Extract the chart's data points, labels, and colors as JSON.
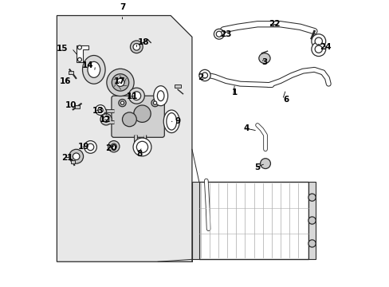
{
  "bg": "#ffffff",
  "box_fill": "#e8e8e8",
  "lc": "#2a2a2a",
  "lw_thin": 0.7,
  "lw_med": 1.2,
  "lw_thick": 2.5,
  "fs": 7.5,
  "part_labels": {
    "7": [
      0.245,
      0.965,
      "center",
      "bottom"
    ],
    "15": [
      0.055,
      0.835,
      "right",
      "center"
    ],
    "14": [
      0.145,
      0.775,
      "right",
      "center"
    ],
    "16": [
      0.025,
      0.72,
      "left",
      "center"
    ],
    "18": [
      0.3,
      0.855,
      "left",
      "center"
    ],
    "17": [
      0.215,
      0.72,
      "left",
      "center"
    ],
    "11": [
      0.26,
      0.665,
      "left",
      "center"
    ],
    "10": [
      0.045,
      0.635,
      "left",
      "center"
    ],
    "13": [
      0.14,
      0.615,
      "left",
      "center"
    ],
    "12": [
      0.165,
      0.585,
      "left",
      "center"
    ],
    "9": [
      0.43,
      0.58,
      "left",
      "center"
    ],
    "8": [
      0.295,
      0.465,
      "left",
      "center"
    ],
    "20": [
      0.185,
      0.485,
      "left",
      "center"
    ],
    "19": [
      0.09,
      0.49,
      "left",
      "center"
    ],
    "21": [
      0.03,
      0.45,
      "left",
      "center"
    ],
    "22": [
      0.76,
      0.92,
      "left",
      "center"
    ],
    "23": [
      0.59,
      0.87,
      "left",
      "bottom"
    ],
    "24": [
      0.94,
      0.84,
      "left",
      "center"
    ],
    "3": [
      0.735,
      0.785,
      "left",
      "center"
    ],
    "2": [
      0.53,
      0.72,
      "right",
      "bottom"
    ],
    "1": [
      0.63,
      0.665,
      "left",
      "bottom"
    ],
    "6": [
      0.81,
      0.655,
      "left",
      "center"
    ],
    "4": [
      0.67,
      0.555,
      "left",
      "center"
    ],
    "5": [
      0.71,
      0.415,
      "left",
      "center"
    ]
  }
}
